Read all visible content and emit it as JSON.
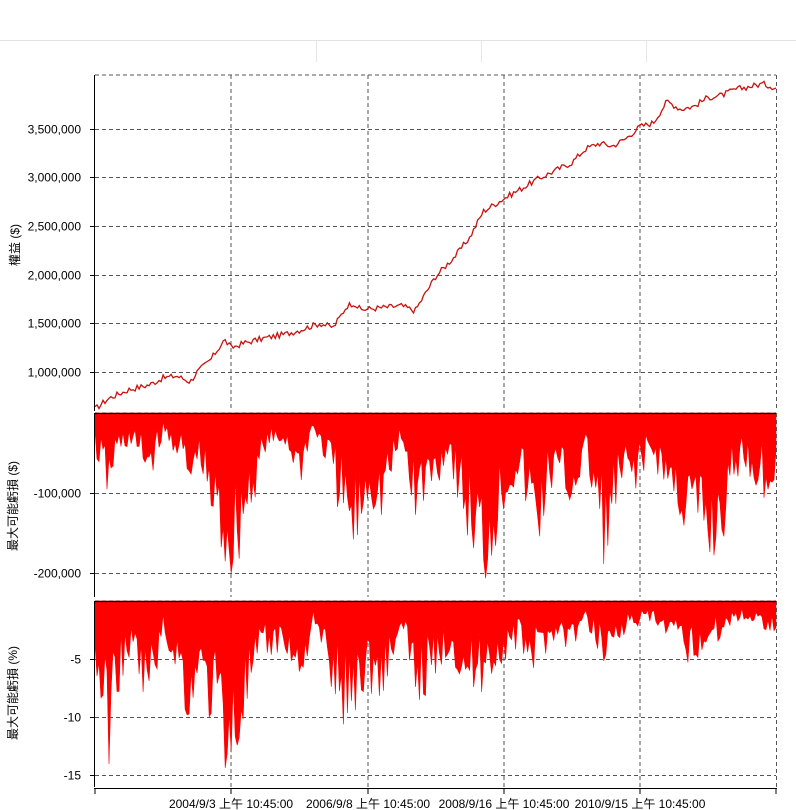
{
  "chart_data": [
    {
      "type": "line",
      "ylabel": "權益 ($)",
      "ylim": [
        600000,
        4050000
      ],
      "y_ticks": [
        {
          "value": 1000000,
          "label": "1,000,000"
        },
        {
          "value": 1500000,
          "label": "1,500,000"
        },
        {
          "value": 2000000,
          "label": "2,000,000"
        },
        {
          "value": 2500000,
          "label": "2,500,000"
        },
        {
          "value": 3000000,
          "label": "3,000,000"
        },
        {
          "value": 3500000,
          "label": "3,500,000"
        }
      ],
      "grid": true,
      "color": "#c8120f",
      "series": [
        {
          "x": [
            0,
            0.02,
            0.05,
            0.08,
            0.1,
            0.12,
            0.14,
            0.15,
            0.17,
            0.18,
            0.19,
            0.2,
            0.22,
            0.25,
            0.28,
            0.3,
            0.33,
            0.35,
            0.37,
            0.38,
            0.39,
            0.42,
            0.45,
            0.47,
            0.5,
            0.53,
            0.55,
            0.57,
            0.6,
            0.62,
            0.65,
            0.67,
            0.7,
            0.72,
            0.74,
            0.76,
            0.78,
            0.8,
            0.82,
            0.84,
            0.86,
            0.88,
            0.9,
            0.92,
            0.94,
            0.96,
            0.98,
            1.0
          ],
          "values": [
            620000,
            730000,
            820000,
            870000,
            940000,
            960000,
            900000,
            1000000,
            1130000,
            1230000,
            1330000,
            1250000,
            1300000,
            1350000,
            1390000,
            1430000,
            1500000,
            1460000,
            1680000,
            1710000,
            1640000,
            1660000,
            1680000,
            1630000,
            1980000,
            2200000,
            2380000,
            2650000,
            2780000,
            2860000,
            2980000,
            3050000,
            3150000,
            3290000,
            3350000,
            3320000,
            3400000,
            3520000,
            3560000,
            3780000,
            3700000,
            3730000,
            3820000,
            3840000,
            3900000,
            3930000,
            3960000,
            3920000
          ]
        }
      ]
    },
    {
      "type": "area",
      "ylabel": "最大可能虧損 ($)",
      "ylim": [
        -230000,
        0
      ],
      "y_ticks": [
        {
          "value": -100000,
          "label": "-100,000"
        },
        {
          "value": -200000,
          "label": "-200,000"
        }
      ],
      "grid": true,
      "color": "#ff0000",
      "series": [
        {
          "x": [
            0,
            0.02,
            0.03,
            0.05,
            0.08,
            0.1,
            0.12,
            0.13,
            0.14,
            0.15,
            0.16,
            0.18,
            0.2,
            0.22,
            0.25,
            0.28,
            0.3,
            0.32,
            0.35,
            0.37,
            0.38,
            0.4,
            0.42,
            0.45,
            0.47,
            0.5,
            0.52,
            0.55,
            0.57,
            0.6,
            0.62,
            0.65,
            0.67,
            0.7,
            0.72,
            0.75,
            0.77,
            0.8,
            0.82,
            0.85,
            0.87,
            0.9,
            0.92,
            0.93,
            0.95,
            0.97,
            1.0
          ],
          "values": [
            -50000,
            -110000,
            -60000,
            -40000,
            -80000,
            -30000,
            -50000,
            -70000,
            -115000,
            -60000,
            -100000,
            -170000,
            -210000,
            -150000,
            -50000,
            -40000,
            -90000,
            -20000,
            -90000,
            -160000,
            -190000,
            -110000,
            -130000,
            -40000,
            -130000,
            -90000,
            -50000,
            -170000,
            -220000,
            -120000,
            -80000,
            -170000,
            -90000,
            -120000,
            -60000,
            -190000,
            -110000,
            -80000,
            -60000,
            -120000,
            -150000,
            -190000,
            -170000,
            -120000,
            -60000,
            -90000,
            -110000
          ]
        }
      ]
    },
    {
      "type": "area",
      "ylabel": "最大可能虧損 (%)",
      "ylim": [
        -16,
        0
      ],
      "y_ticks": [
        {
          "value": -5,
          "label": "-5"
        },
        {
          "value": -10,
          "label": "-10"
        },
        {
          "value": -15,
          "label": "-15"
        }
      ],
      "grid": true,
      "color": "#ff0000",
      "series": [
        {
          "x": [
            0,
            0.02,
            0.03,
            0.05,
            0.08,
            0.1,
            0.12,
            0.13,
            0.14,
            0.15,
            0.16,
            0.18,
            0.2,
            0.22,
            0.25,
            0.28,
            0.3,
            0.32,
            0.35,
            0.37,
            0.38,
            0.4,
            0.42,
            0.45,
            0.47,
            0.5,
            0.52,
            0.55,
            0.57,
            0.6,
            0.62,
            0.65,
            0.67,
            0.7,
            0.72,
            0.75,
            0.77,
            0.8,
            0.82,
            0.85,
            0.87,
            0.9,
            0.92,
            0.93,
            0.95,
            0.97,
            1.0
          ],
          "values": [
            -6,
            -13.5,
            -8,
            -5,
            -9,
            -3,
            -6,
            -8,
            -12,
            -6,
            -9,
            -11,
            -15.5,
            -10,
            -5,
            -4,
            -8,
            -2,
            -8,
            -10.5,
            -9,
            -7,
            -8,
            -3,
            -8,
            -7,
            -4,
            -8,
            -7,
            -5,
            -4,
            -6,
            -3,
            -4,
            -2,
            -5,
            -3,
            -2,
            -2,
            -4,
            -5,
            -4,
            -3,
            -2,
            -1.5,
            -2,
            -2.5
          ]
        }
      ]
    }
  ],
  "x_axis": {
    "tick_labels": [
      "2004/9/3 上午 10:45:00",
      "2006/9/8 上午 10:45:00",
      "2008/9/16 上午 10:45:00",
      "2010/9/15 上午 10:45:00"
    ]
  }
}
